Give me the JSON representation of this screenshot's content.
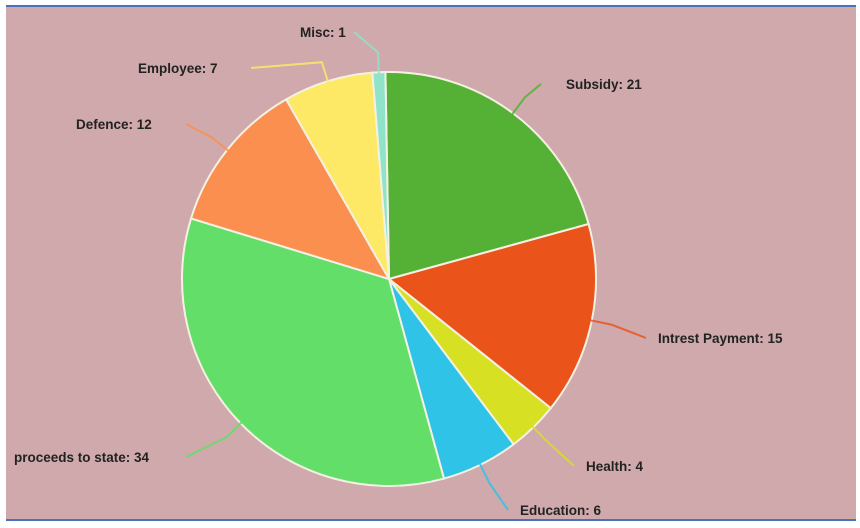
{
  "chart_data": {
    "type": "pie",
    "title": "",
    "label_format": "{name}: {value}",
    "slices": [
      {
        "name": "Subsidy",
        "value": 21,
        "color": "#55b135"
      },
      {
        "name": "Intrest Payment",
        "value": 15,
        "color": "#ea541b"
      },
      {
        "name": "Health",
        "value": 4,
        "color": "#d7e023"
      },
      {
        "name": "Education",
        "value": 6,
        "color": "#2fc3e7"
      },
      {
        "name": "proceeds to state",
        "value": 34,
        "color": "#63de68"
      },
      {
        "name": "Defence",
        "value": 12,
        "color": "#fa8f4f"
      },
      {
        "name": "Employee",
        "value": 7,
        "color": "#fde966"
      },
      {
        "name": "Misc",
        "value": 1,
        "color": "#8fe3c9"
      }
    ]
  }
}
